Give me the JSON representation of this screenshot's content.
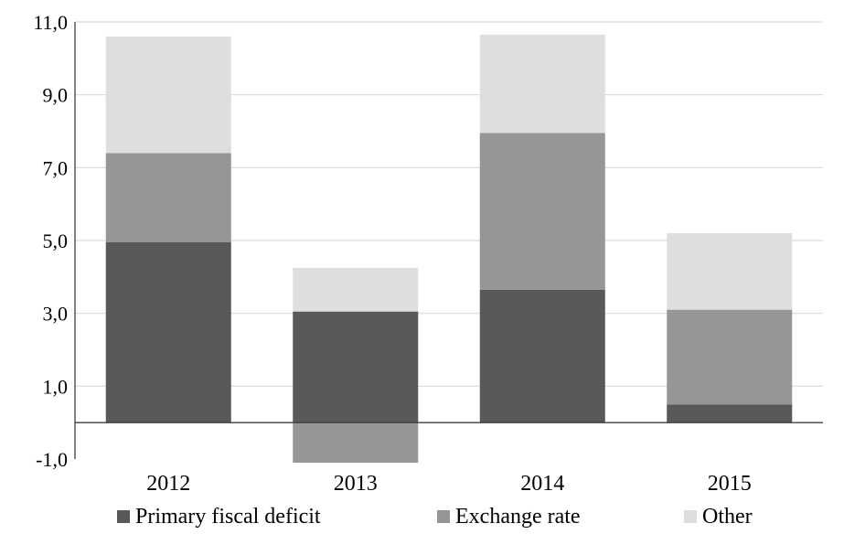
{
  "chart_data": {
    "type": "bar",
    "stacked": true,
    "title": "",
    "xlabel": "",
    "ylabel": "",
    "categories": [
      "2012",
      "2013",
      "2014",
      "2015"
    ],
    "series": [
      {
        "name": "Primary fiscal deficit",
        "values": [
          4.95,
          3.05,
          3.65,
          0.5
        ],
        "color": "#595959"
      },
      {
        "name": "Exchange rate",
        "values": [
          2.45,
          -1.1,
          4.3,
          2.6
        ],
        "color": "#969696"
      },
      {
        "name": "Other",
        "values": [
          3.2,
          1.2,
          2.7,
          2.1
        ],
        "color": "#dedede"
      }
    ],
    "ylim": [
      -1.0,
      11.0
    ],
    "yticks": [
      -1.0,
      1.0,
      3.0,
      5.0,
      7.0,
      9.0,
      11.0
    ],
    "ytick_labels": [
      "-1,0",
      "1,0",
      "3,0",
      "5,0",
      "7,0",
      "9,0",
      "11,0"
    ],
    "grid": true,
    "legend_position": "bottom"
  },
  "legend": {
    "items": [
      {
        "label": "Primary fiscal deficit",
        "color": "#595959"
      },
      {
        "label": "Exchange rate",
        "color": "#969696"
      },
      {
        "label": "Other",
        "color": "#dedede"
      }
    ]
  }
}
